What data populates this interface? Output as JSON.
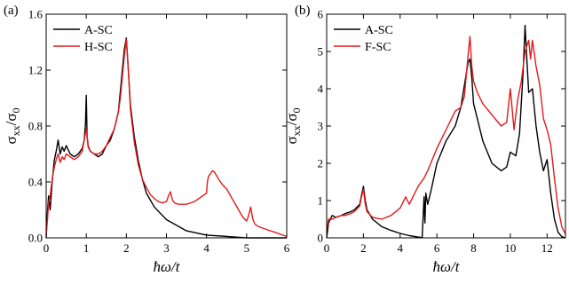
{
  "chart_data": [
    {
      "type": "line",
      "panel_label": "(a)",
      "xlabel": "ħω/t",
      "ylabel": "σxx/σ0",
      "xlim": [
        0,
        6
      ],
      "ylim": [
        0,
        1.6
      ],
      "xticks": [
        0,
        1,
        2,
        3,
        4,
        5,
        6
      ],
      "yticks": [
        0.0,
        0.4,
        0.8,
        1.2,
        1.6
      ],
      "ytick_labels": [
        "0.0",
        "0.4",
        "0.8",
        "1.2",
        "1.6"
      ],
      "legend_position": "top-left",
      "series": [
        {
          "name": "A-SC",
          "color": "#000000",
          "x": [
            0.0,
            0.03,
            0.06,
            0.1,
            0.15,
            0.2,
            0.25,
            0.3,
            0.35,
            0.4,
            0.45,
            0.5,
            0.6,
            0.7,
            0.8,
            0.9,
            0.95,
            0.98,
            1.0,
            1.02,
            1.05,
            1.1,
            1.2,
            1.3,
            1.4,
            1.5,
            1.6,
            1.7,
            1.8,
            1.85,
            1.9,
            1.95,
            2.0,
            2.05,
            2.1,
            2.2,
            2.3,
            2.4,
            2.5,
            2.7,
            3.0,
            3.5,
            4.0,
            4.5,
            5.0,
            5.5,
            6.0
          ],
          "y": [
            0.0,
            0.18,
            0.3,
            0.2,
            0.4,
            0.55,
            0.62,
            0.7,
            0.6,
            0.65,
            0.62,
            0.66,
            0.6,
            0.58,
            0.6,
            0.64,
            0.7,
            0.82,
            1.02,
            0.72,
            0.65,
            0.62,
            0.6,
            0.58,
            0.6,
            0.66,
            0.7,
            0.78,
            0.9,
            1.05,
            1.2,
            1.35,
            1.43,
            1.2,
            0.95,
            0.72,
            0.55,
            0.42,
            0.32,
            0.22,
            0.13,
            0.05,
            0.02,
            0.01,
            0.0,
            0.0,
            0.0
          ]
        },
        {
          "name": "H-SC",
          "color": "#e31a1c",
          "x": [
            0.0,
            0.03,
            0.06,
            0.1,
            0.15,
            0.2,
            0.25,
            0.3,
            0.35,
            0.4,
            0.45,
            0.5,
            0.6,
            0.7,
            0.8,
            0.9,
            0.95,
            1.0,
            1.05,
            1.1,
            1.2,
            1.3,
            1.4,
            1.5,
            1.6,
            1.7,
            1.8,
            1.85,
            1.9,
            1.95,
            2.0,
            2.05,
            2.1,
            2.2,
            2.3,
            2.4,
            2.5,
            2.6,
            2.7,
            2.8,
            2.9,
            3.0,
            3.05,
            3.1,
            3.15,
            3.2,
            3.3,
            3.5,
            3.7,
            3.9,
            4.0,
            4.02,
            4.05,
            4.1,
            4.15,
            4.2,
            4.3,
            4.4,
            4.5,
            4.6,
            4.7,
            4.8,
            4.9,
            5.0,
            5.05,
            5.1,
            5.15,
            5.2,
            5.3,
            5.5,
            5.7,
            5.9,
            6.0
          ],
          "y": [
            0.02,
            0.12,
            0.25,
            0.3,
            0.42,
            0.5,
            0.56,
            0.6,
            0.54,
            0.58,
            0.56,
            0.6,
            0.58,
            0.56,
            0.58,
            0.62,
            0.7,
            0.78,
            0.66,
            0.62,
            0.6,
            0.6,
            0.62,
            0.66,
            0.72,
            0.78,
            0.9,
            1.0,
            1.15,
            1.3,
            1.42,
            1.2,
            0.92,
            0.68,
            0.52,
            0.42,
            0.36,
            0.31,
            0.28,
            0.26,
            0.25,
            0.26,
            0.3,
            0.33,
            0.27,
            0.25,
            0.24,
            0.24,
            0.26,
            0.3,
            0.32,
            0.4,
            0.44,
            0.46,
            0.48,
            0.47,
            0.42,
            0.38,
            0.35,
            0.3,
            0.25,
            0.2,
            0.15,
            0.12,
            0.16,
            0.22,
            0.14,
            0.1,
            0.08,
            0.06,
            0.04,
            0.02,
            0.01
          ]
        }
      ]
    },
    {
      "type": "line",
      "panel_label": "(b)",
      "xlabel": "ħω/t",
      "ylabel": "σxx/σ0",
      "xlim": [
        0,
        13
      ],
      "ylim": [
        0,
        6
      ],
      "xticks": [
        0,
        2,
        4,
        6,
        8,
        10,
        12
      ],
      "yticks": [
        0,
        1,
        2,
        3,
        4,
        5,
        6
      ],
      "ytick_labels": [
        "0",
        "1",
        "2",
        "3",
        "4",
        "5",
        "6"
      ],
      "legend_position": "top-left",
      "series": [
        {
          "name": "A-SC",
          "color": "#000000",
          "x": [
            0.0,
            0.1,
            0.3,
            0.5,
            0.8,
            1.0,
            1.3,
            1.5,
            1.8,
            1.9,
            2.0,
            2.1,
            2.2,
            2.5,
            3.0,
            3.5,
            4.0,
            4.5,
            5.0,
            5.2,
            5.3,
            5.35,
            5.4,
            5.5,
            5.7,
            6.0,
            6.5,
            7.0,
            7.3,
            7.5,
            7.7,
            7.8,
            7.9,
            8.0,
            8.2,
            8.5,
            9.0,
            9.5,
            9.8,
            10.0,
            10.3,
            10.5,
            10.7,
            10.8,
            10.9,
            11.0,
            11.2,
            11.4,
            11.6,
            11.8,
            12.0,
            12.2,
            12.4,
            12.6,
            12.8,
            13.0
          ],
          "y": [
            0.0,
            0.4,
            0.6,
            0.55,
            0.6,
            0.65,
            0.7,
            0.75,
            0.9,
            1.15,
            1.38,
            1.0,
            0.75,
            0.5,
            0.3,
            0.2,
            0.12,
            0.06,
            0.02,
            0.01,
            1.1,
            0.4,
            1.2,
            0.9,
            1.3,
            2.0,
            2.6,
            3.0,
            3.5,
            4.1,
            4.7,
            4.8,
            4.3,
            3.6,
            3.2,
            2.6,
            2.0,
            1.8,
            1.9,
            2.3,
            2.2,
            2.8,
            4.5,
            5.7,
            4.8,
            3.9,
            4.0,
            3.0,
            2.3,
            1.8,
            2.1,
            1.2,
            0.5,
            0.15,
            0.03,
            0.0
          ]
        },
        {
          "name": "F-SC",
          "color": "#e31a1c",
          "x": [
            0.0,
            0.1,
            0.3,
            0.5,
            0.8,
            1.0,
            1.3,
            1.5,
            1.8,
            1.9,
            2.0,
            2.1,
            2.2,
            2.5,
            3.0,
            3.5,
            4.0,
            4.3,
            4.5,
            4.8,
            5.0,
            5.3,
            5.5,
            6.0,
            6.5,
            7.0,
            7.3,
            7.5,
            7.7,
            7.8,
            7.9,
            8.0,
            8.2,
            8.5,
            9.0,
            9.5,
            9.8,
            10.0,
            10.2,
            10.4,
            10.6,
            10.8,
            11.0,
            11.1,
            11.2,
            11.4,
            11.6,
            11.8,
            12.0,
            12.2,
            12.4,
            12.6,
            12.8,
            13.0
          ],
          "y": [
            0.2,
            0.5,
            0.5,
            0.55,
            0.6,
            0.6,
            0.65,
            0.7,
            0.85,
            1.1,
            1.3,
            0.9,
            0.7,
            0.55,
            0.5,
            0.6,
            0.8,
            1.1,
            0.9,
            1.2,
            1.4,
            1.6,
            1.8,
            2.4,
            2.9,
            3.4,
            3.5,
            3.8,
            4.9,
            5.4,
            4.6,
            4.2,
            3.9,
            3.6,
            3.3,
            3.0,
            3.1,
            4.0,
            2.9,
            3.7,
            4.2,
            5.0,
            5.3,
            4.8,
            5.3,
            4.6,
            4.1,
            3.2,
            2.9,
            2.5,
            1.6,
            0.8,
            0.3,
            0.1
          ]
        }
      ]
    }
  ]
}
